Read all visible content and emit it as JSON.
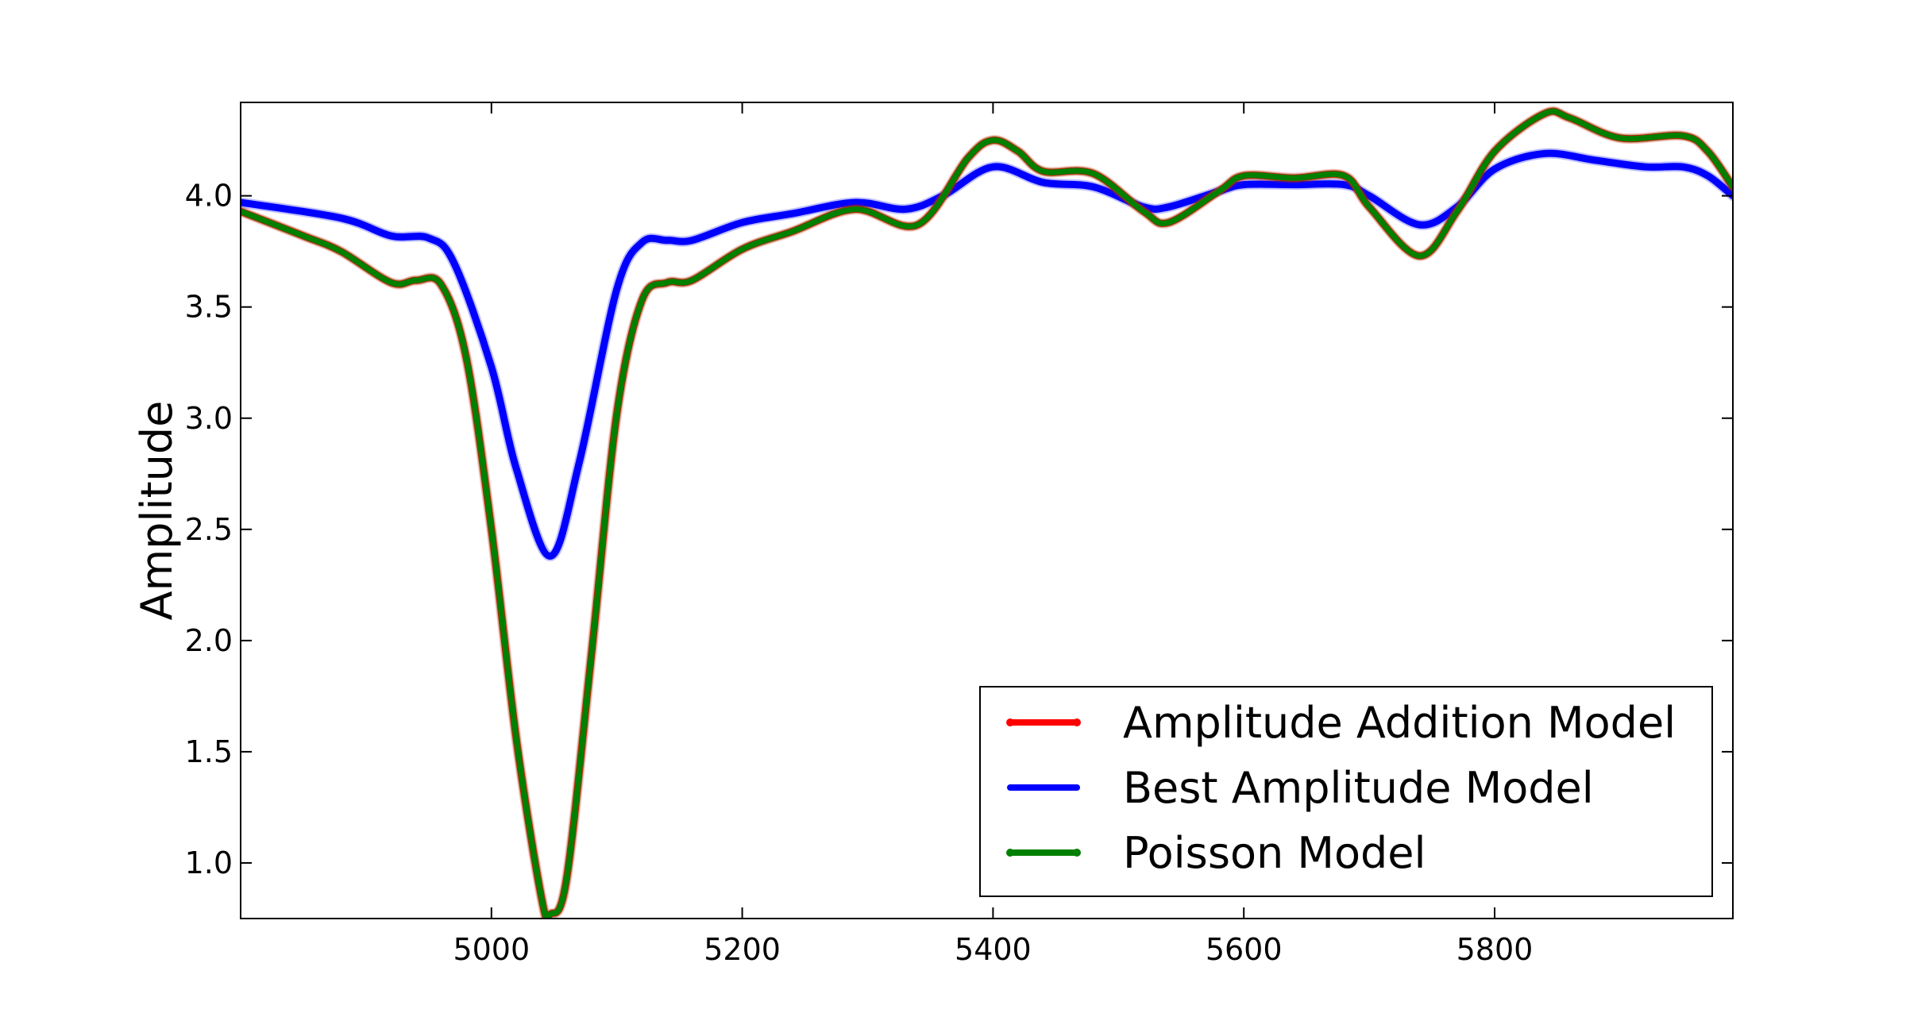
{
  "chart_data": {
    "type": "line",
    "title": "",
    "xlabel": "",
    "ylabel": "Amplitude",
    "xlim": [
      4800,
      5990
    ],
    "ylim": [
      0.75,
      4.42
    ],
    "xticks": [
      5000,
      5200,
      5400,
      5600,
      5800
    ],
    "xtick_labels": [
      "5000",
      "5200",
      "5400",
      "5600",
      "5800"
    ],
    "yticks": [
      1.0,
      1.5,
      2.0,
      2.5,
      3.0,
      3.5,
      4.0
    ],
    "ytick_labels": [
      "1.0",
      "1.5",
      "2.0",
      "2.5",
      "3.0",
      "3.5",
      "4.0"
    ],
    "grid": false,
    "legend_position": "lower-right",
    "series": [
      {
        "name": "Amplitude Addition Model",
        "color": "#ff0000",
        "x": [
          4800,
          4850,
          4880,
          4920,
          4940,
          4960,
          4980,
          5000,
          5020,
          5040,
          5047,
          5060,
          5080,
          5100,
          5120,
          5140,
          5160,
          5200,
          5240,
          5290,
          5340,
          5380,
          5400,
          5420,
          5440,
          5480,
          5520,
          5540,
          5580,
          5600,
          5640,
          5680,
          5700,
          5740,
          5770,
          5800,
          5840,
          5860,
          5900,
          5950,
          5970,
          5990
        ],
        "y": [
          3.93,
          3.82,
          3.75,
          3.61,
          3.62,
          3.6,
          3.27,
          2.5,
          1.55,
          0.84,
          0.77,
          0.93,
          1.95,
          3.02,
          3.53,
          3.61,
          3.62,
          3.76,
          3.84,
          3.94,
          3.87,
          4.17,
          4.25,
          4.2,
          4.11,
          4.1,
          3.93,
          3.88,
          4.02,
          4.09,
          4.08,
          4.09,
          3.95,
          3.73,
          3.93,
          4.2,
          4.37,
          4.35,
          4.26,
          4.27,
          4.2,
          4.04
        ]
      },
      {
        "name": "Best Amplitude Model",
        "color": "#0000ff",
        "x": [
          4800,
          4880,
          4920,
          4950,
          4970,
          5000,
          5020,
          5047,
          5070,
          5100,
          5120,
          5140,
          5160,
          5200,
          5240,
          5290,
          5330,
          5360,
          5400,
          5440,
          5480,
          5520,
          5540,
          5580,
          5600,
          5640,
          5680,
          5700,
          5740,
          5770,
          5800,
          5840,
          5880,
          5920,
          5950,
          5970,
          5990
        ],
        "y": [
          3.97,
          3.9,
          3.82,
          3.81,
          3.7,
          3.23,
          2.77,
          2.38,
          2.8,
          3.58,
          3.79,
          3.8,
          3.8,
          3.88,
          3.92,
          3.97,
          3.94,
          4.0,
          4.13,
          4.06,
          4.04,
          3.95,
          3.95,
          4.02,
          4.05,
          4.05,
          4.05,
          4.0,
          3.87,
          3.95,
          4.12,
          4.19,
          4.16,
          4.13,
          4.13,
          4.09,
          4.0
        ]
      },
      {
        "name": "Poisson Model",
        "color": "#008000",
        "x": [
          4800,
          4850,
          4880,
          4920,
          4940,
          4960,
          4980,
          5000,
          5020,
          5040,
          5047,
          5060,
          5080,
          5100,
          5120,
          5140,
          5160,
          5200,
          5240,
          5290,
          5340,
          5380,
          5400,
          5420,
          5440,
          5480,
          5520,
          5540,
          5580,
          5600,
          5640,
          5680,
          5700,
          5740,
          5770,
          5800,
          5840,
          5860,
          5900,
          5950,
          5970,
          5990
        ],
        "y": [
          3.93,
          3.82,
          3.75,
          3.61,
          3.62,
          3.6,
          3.27,
          2.5,
          1.55,
          0.84,
          0.77,
          0.93,
          1.95,
          3.02,
          3.53,
          3.61,
          3.62,
          3.76,
          3.84,
          3.94,
          3.87,
          4.17,
          4.25,
          4.2,
          4.11,
          4.1,
          3.93,
          3.88,
          4.02,
          4.09,
          4.08,
          4.09,
          3.95,
          3.73,
          3.93,
          4.2,
          4.37,
          4.35,
          4.26,
          4.27,
          4.2,
          4.04
        ]
      }
    ]
  }
}
